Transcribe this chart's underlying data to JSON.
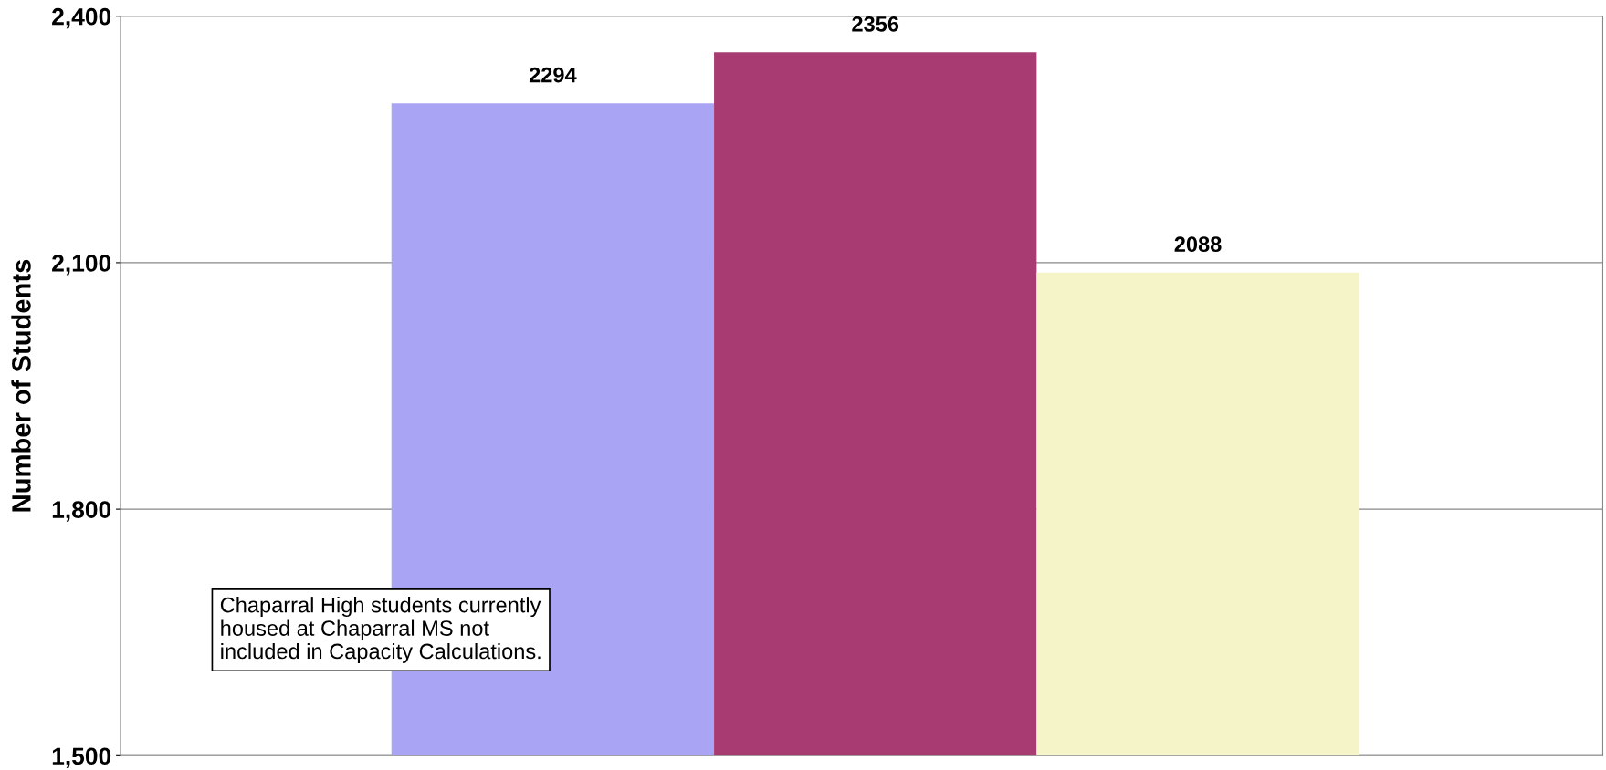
{
  "chart_data": {
    "type": "bar",
    "ylabel": "Number of Students",
    "categories": [
      null,
      null,
      null
    ],
    "values": [
      2294,
      2356,
      2088
    ],
    "colors": [
      "#aaa4f4",
      "#a83c72",
      "#f4f4c8"
    ],
    "ylim": [
      1500,
      2400
    ],
    "yticks": [
      {
        "value": 1500,
        "label": "1,500"
      },
      {
        "value": 1800,
        "label": "1,800"
      },
      {
        "value": 2100,
        "label": "2,100"
      },
      {
        "value": 2400,
        "label": "2,400"
      }
    ],
    "grid": "y",
    "data_labels": true,
    "legend": false,
    "annotations": [
      "Chaparral High students currently\nhoused at Chaparral MS not\nincluded in Capacity Calculations."
    ]
  }
}
